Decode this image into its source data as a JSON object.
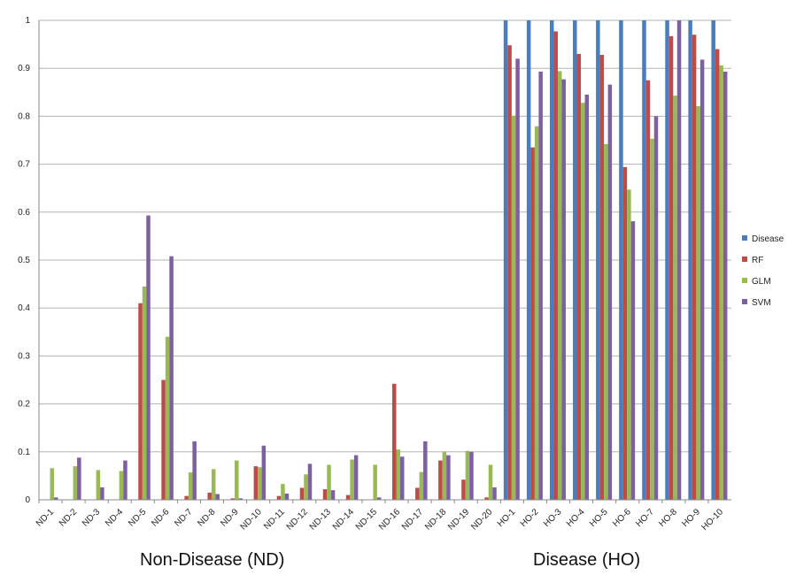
{
  "chart_data": {
    "type": "bar",
    "title": "",
    "xlabel": "",
    "ylabel": "",
    "ylim": [
      0,
      1
    ],
    "yticks": [
      "0",
      "0.1",
      "0.2",
      "0.3",
      "0.4",
      "0.5",
      "0.6",
      "0.7",
      "0.8",
      "0.9",
      "1"
    ],
    "grid": true,
    "legend_position": "right",
    "categories": [
      "ND-1",
      "ND-2",
      "ND-3",
      "ND-4",
      "ND-5",
      "ND-6",
      "ND-7",
      "ND-8",
      "ND-9",
      "ND-10",
      "ND-11",
      "ND-12",
      "ND-13",
      "ND-14",
      "ND-15",
      "ND-16",
      "ND-17",
      "ND-18",
      "ND-19",
      "ND-20",
      "HO-1",
      "HO-2",
      "HO-3",
      "HO-4",
      "HO-5",
      "HO-6",
      "HO-7",
      "HO-8",
      "HO-9",
      "HO-10"
    ],
    "series": [
      {
        "name": "Disease",
        "color": "#4a7ebb",
        "values": [
          0,
          0,
          0,
          0,
          0,
          0,
          0,
          0,
          0,
          0,
          0,
          0,
          0,
          0,
          0,
          0,
          0,
          0,
          0,
          0,
          1,
          1,
          1,
          1,
          1,
          1,
          1,
          1,
          1,
          1
        ]
      },
      {
        "name": "RF",
        "color": "#be4b48",
        "values": [
          0,
          0,
          0,
          0,
          0.41,
          0.25,
          0.008,
          0.015,
          0.003,
          0.07,
          0.008,
          0.025,
          0.022,
          0.01,
          0,
          0.242,
          0.025,
          0.082,
          0.042,
          0.005,
          0.948,
          0.735,
          0.977,
          0.93,
          0.928,
          0.694,
          0.875,
          0.967,
          0.97,
          0.94
        ]
      },
      {
        "name": "GLM",
        "color": "#98b954",
        "values": [
          0.066,
          0.07,
          0.062,
          0.06,
          0.445,
          0.34,
          0.057,
          0.064,
          0.082,
          0.068,
          0.033,
          0.053,
          0.073,
          0.084,
          0.073,
          0.105,
          0.058,
          0.1,
          0.102,
          0.073,
          0.801,
          0.779,
          0.894,
          0.828,
          0.742,
          0.647,
          0.753,
          0.843,
          0.821,
          0.906
        ]
      },
      {
        "name": "SVM",
        "color": "#7d60a0",
        "values": [
          0.005,
          0.088,
          0.026,
          0.082,
          0.593,
          0.508,
          0.122,
          0.012,
          0.003,
          0.113,
          0.013,
          0.075,
          0.02,
          0.093,
          0.005,
          0.09,
          0.122,
          0.093,
          0.1,
          0.026,
          0.92,
          0.893,
          0.877,
          0.845,
          0.866,
          0.581,
          0.8,
          1,
          0.918,
          0.893
        ]
      }
    ],
    "group_labels": [
      "Non-Disease (ND)",
      "Disease (HO)"
    ]
  }
}
